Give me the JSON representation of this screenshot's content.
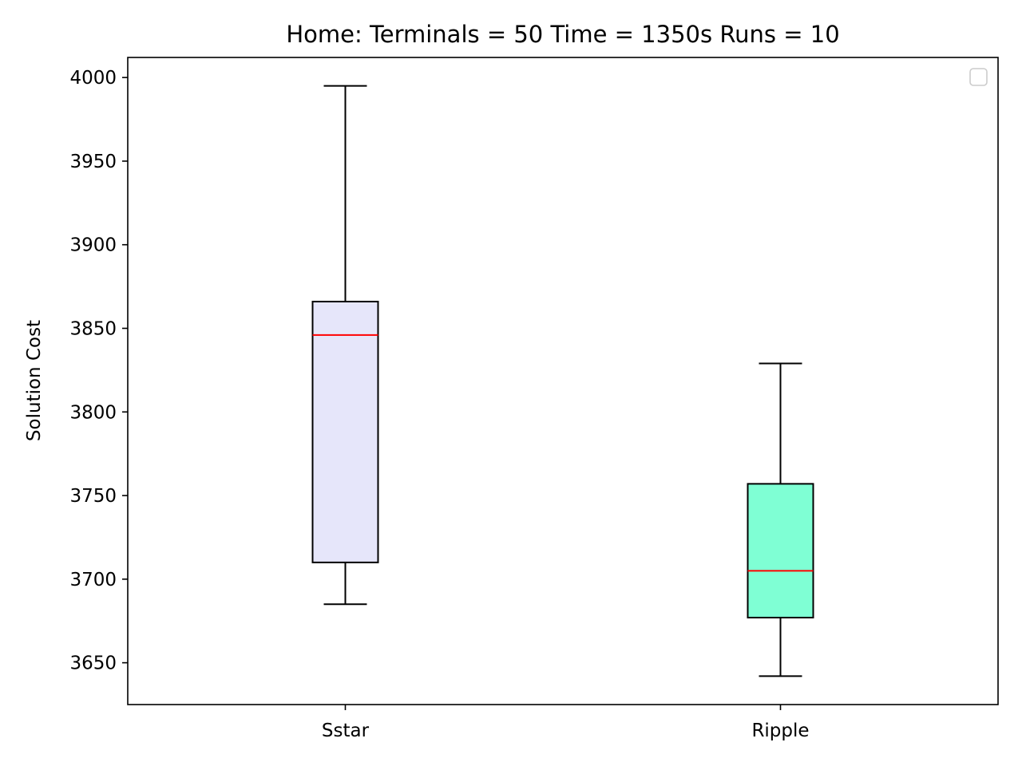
{
  "chart_data": {
    "type": "box",
    "title": "Home:  Terminals = 50  Time = 1350s  Runs = 10",
    "xlabel": "",
    "ylabel": "Solution Cost",
    "ylim": [
      3625,
      4012
    ],
    "yticks": [
      3650,
      3700,
      3750,
      3800,
      3850,
      3900,
      3950,
      4000
    ],
    "categories": [
      "Sstar",
      "Ripple"
    ],
    "boxes": [
      {
        "label": "Sstar",
        "whisker_low": 3685,
        "q1": 3710,
        "median": 3846,
        "q3": 3866,
        "whisker_high": 3995,
        "fill": "#e6e6fa"
      },
      {
        "label": "Ripple",
        "whisker_low": 3642,
        "q1": 3677,
        "median": 3705,
        "q3": 3757,
        "whisker_high": 3829,
        "fill": "#7fffd4"
      }
    ],
    "median_color": "#ff0000",
    "legend": {
      "location": "top-right",
      "entries": []
    },
    "grid": false
  }
}
